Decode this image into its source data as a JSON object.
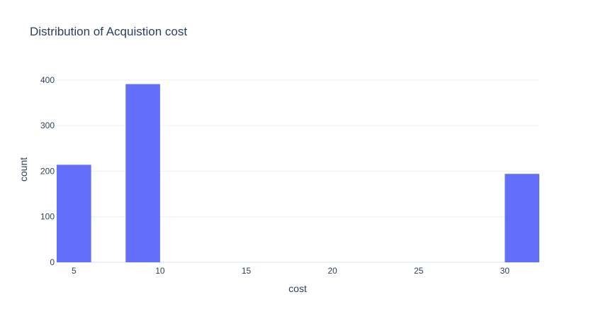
{
  "chart_data": {
    "type": "bar",
    "title": "Distribution of Acquistion cost",
    "xlabel": "cost",
    "ylabel": "count",
    "bar_color": "#636efa",
    "grid": true,
    "xlim": [
      4,
      32
    ],
    "ylim": [
      0,
      420
    ],
    "xticks": [
      5,
      10,
      15,
      20,
      25,
      30
    ],
    "yticks": [
      0,
      100,
      200,
      300,
      400
    ],
    "bin_width": 2,
    "bins": [
      {
        "start": 4,
        "end": 6,
        "count": 214
      },
      {
        "start": 8,
        "end": 10,
        "count": 391
      },
      {
        "start": 30,
        "end": 32,
        "count": 194
      }
    ]
  }
}
